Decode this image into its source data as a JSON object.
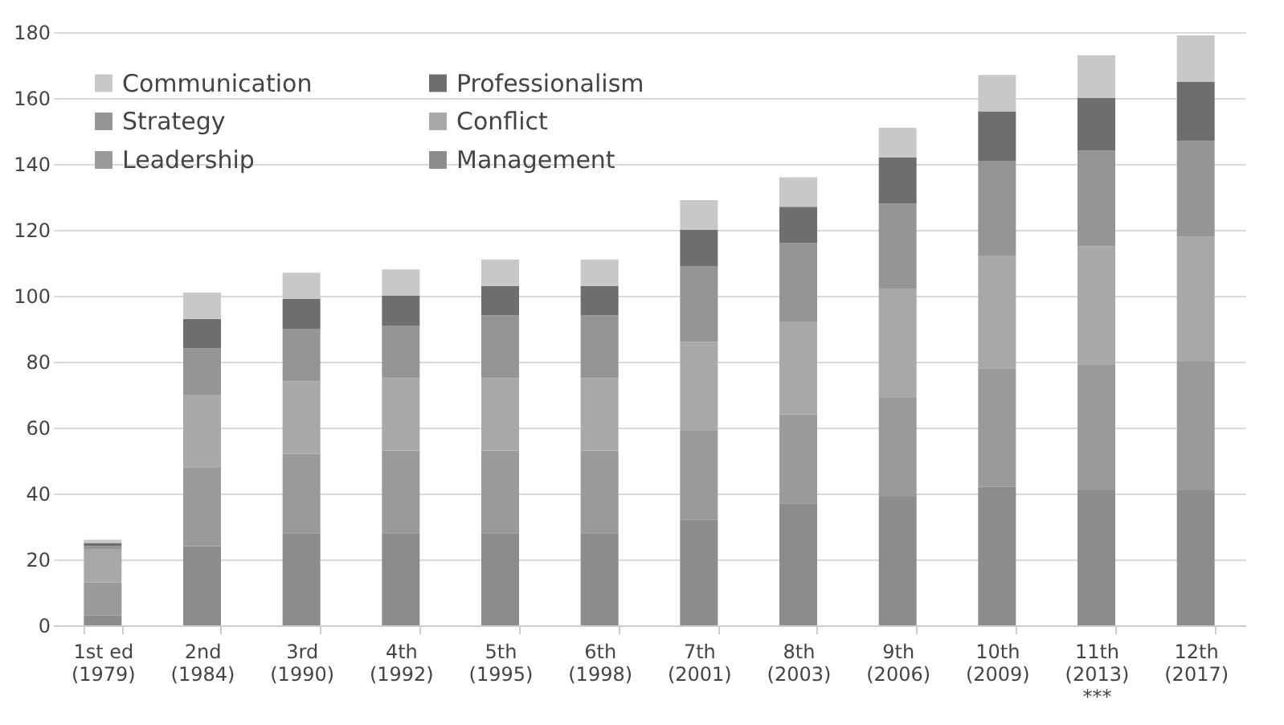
{
  "chart_data": {
    "type": "bar",
    "stacked": true,
    "categories": [
      "1st ed\n(1979)",
      "2nd\n(1984)",
      "3rd\n(1990)",
      "4th\n(1992)",
      "5th\n(1995)",
      "6th\n(1998)",
      "7th\n(2001)",
      "8th\n(2003)",
      "9th\n(2006)",
      "10th\n(2009)",
      "11th\n(2013)\n***",
      "12th\n(2017)"
    ],
    "series": [
      {
        "name": "Management",
        "color": "#8c8c8c",
        "values": [
          3,
          24,
          28,
          28,
          28,
          28,
          32,
          37,
          39,
          42,
          41,
          41
        ]
      },
      {
        "name": "Leadership",
        "color": "#9a9a9a",
        "values": [
          10,
          24,
          24,
          25,
          25,
          25,
          27,
          27,
          30,
          36,
          38,
          39
        ]
      },
      {
        "name": "Conflict",
        "color": "#a8a8a8",
        "values": [
          10,
          22,
          22,
          22,
          22,
          22,
          27,
          28,
          33,
          34,
          36,
          38
        ]
      },
      {
        "name": "Strategy",
        "color": "#959595",
        "values": [
          1,
          14,
          16,
          16,
          19,
          19,
          23,
          24,
          26,
          29,
          29,
          29
        ]
      },
      {
        "name": "Professionalism",
        "color": "#6e6e6e",
        "values": [
          1,
          9,
          9,
          9,
          9,
          9,
          11,
          11,
          14,
          15,
          16,
          18
        ]
      },
      {
        "name": "Communication",
        "color": "#c8c8c8",
        "values": [
          1,
          8,
          8,
          8,
          8,
          8,
          9,
          9,
          9,
          11,
          13,
          14
        ]
      }
    ],
    "ylim": [
      0,
      180
    ],
    "yticks": [
      0,
      20,
      40,
      60,
      80,
      100,
      120,
      140,
      160,
      180
    ],
    "grid": "y",
    "legend": "top left"
  }
}
